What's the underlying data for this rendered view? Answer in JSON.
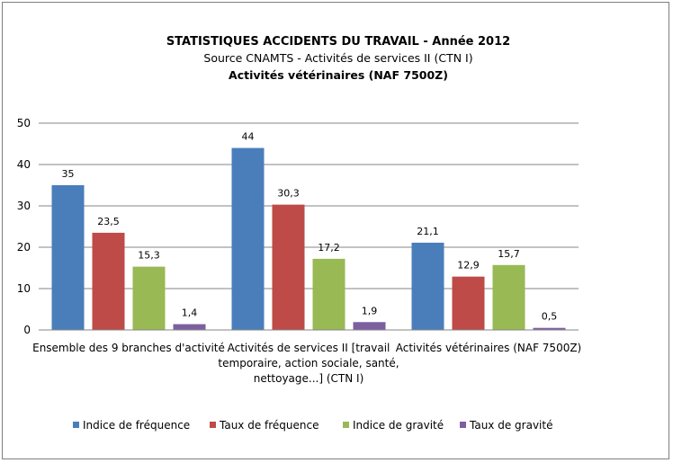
{
  "chart_data": {
    "type": "bar",
    "title": "STATISTIQUES ACCIDENTS DU TRAVAIL - Année 2012",
    "subtitle": "Source  CNAMTS - Activités de services II (CTN I)",
    "subtitle2": "Activités vétérinaires (NAF 7500Z)",
    "categories": [
      [
        "Ensemble des 9 branches d'activité"
      ],
      [
        "Activités de services  II [travail",
        "temporaire, action sociale, santé,",
        "nettoyage...] (CTN  I)"
      ],
      [
        "Activités vétérinaires (NAF 7500Z)"
      ]
    ],
    "series": [
      {
        "name": "Indice de fréquence",
        "color": "#4a7ebb",
        "values": [
          35,
          44,
          21.1
        ],
        "labels": [
          "35",
          "44",
          "21,1"
        ]
      },
      {
        "name": "Taux de fréquence",
        "color": "#be4b48",
        "values": [
          23.5,
          30.3,
          12.9
        ],
        "labels": [
          "23,5",
          "30,3",
          "12,9"
        ]
      },
      {
        "name": "Indice de gravité",
        "color": "#98b954",
        "values": [
          15.3,
          17.2,
          15.7
        ],
        "labels": [
          "15,3",
          "17,2",
          "15,7"
        ]
      },
      {
        "name": "Taux de gravité",
        "color": "#7d5fa0",
        "values": [
          1.4,
          1.9,
          0.5
        ],
        "labels": [
          "1,4",
          "1,9",
          "0,5"
        ]
      }
    ],
    "ylim": [
      0,
      50
    ],
    "yticks": [
      0,
      10,
      20,
      30,
      40,
      50
    ],
    "grid": true,
    "legend": "bottom"
  }
}
